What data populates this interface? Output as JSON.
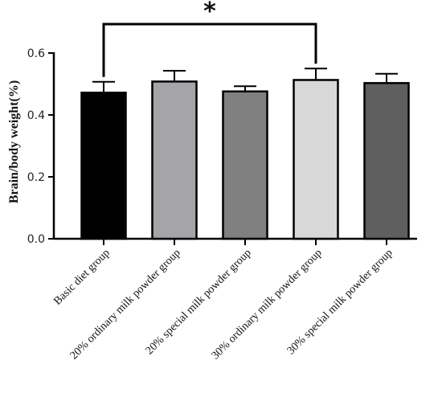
{
  "chart_data": {
    "type": "bar",
    "ylabel": "Brain/body weight(%)",
    "xlabel": "",
    "ylim": [
      0,
      0.6
    ],
    "yticks": [
      "0.0",
      "0.2",
      "0.4",
      "0.6"
    ],
    "categories": [
      "Basic diet group",
      "20% ordinary milk powder group",
      "20% special milk powder group",
      "30% ordinary milk powder group",
      "30% special milk powder group"
    ],
    "values": [
      0.472,
      0.508,
      0.476,
      0.513,
      0.503
    ],
    "errors": [
      0.035,
      0.035,
      0.017,
      0.037,
      0.03
    ],
    "colors": [
      "#000000",
      "#a5a5a9",
      "#808080",
      "#d8d8d8",
      "#5f5f5f"
    ],
    "significance": {
      "from": 0,
      "to": 3,
      "label": "*"
    }
  }
}
